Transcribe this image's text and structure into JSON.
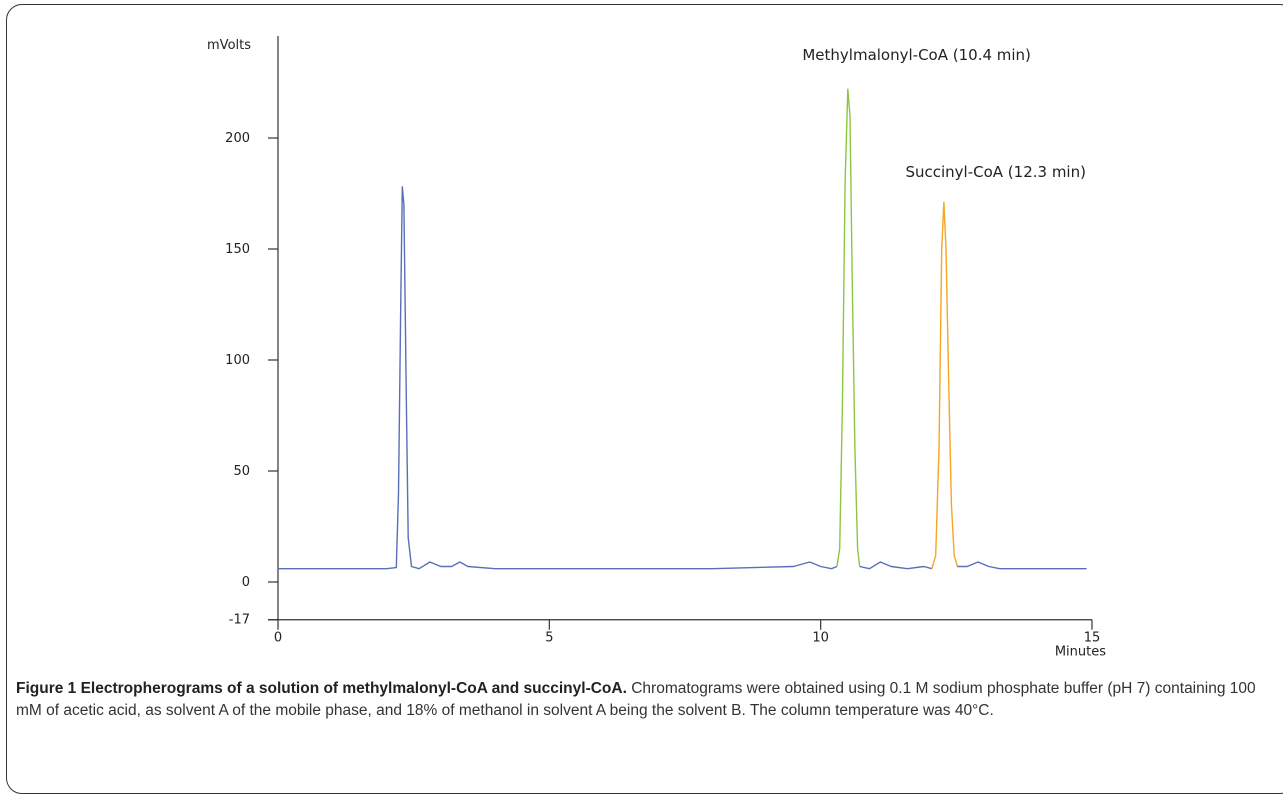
{
  "chart_data": {
    "type": "line",
    "ylabel": "mVolts",
    "xlabel": "Minutes",
    "xlim": [
      0,
      15
    ],
    "ylim": [
      -17,
      250
    ],
    "x_ticks": [
      0,
      5,
      10,
      15
    ],
    "y_ticks": [
      -17,
      0,
      50,
      100,
      150,
      200
    ],
    "baseline_mV": 6,
    "series": [
      {
        "segment": "baseline-and-early-peak",
        "color": "#5a6fb8",
        "points": [
          [
            0,
            6
          ],
          [
            1,
            6
          ],
          [
            2,
            6
          ],
          [
            2.18,
            6.5
          ],
          [
            2.22,
            40
          ],
          [
            2.26,
            120
          ],
          [
            2.29,
            178
          ],
          [
            2.32,
            170
          ],
          [
            2.36,
            90
          ],
          [
            2.4,
            20
          ],
          [
            2.46,
            7
          ],
          [
            2.6,
            6
          ],
          [
            2.8,
            9
          ],
          [
            3.0,
            7
          ],
          [
            3.2,
            7
          ],
          [
            3.35,
            9
          ],
          [
            3.5,
            7
          ],
          [
            4.0,
            6
          ],
          [
            6,
            6
          ],
          [
            8,
            6
          ],
          [
            9.5,
            7
          ],
          [
            9.8,
            9
          ],
          [
            10.0,
            7
          ],
          [
            10.2,
            6
          ],
          [
            10.3,
            7
          ]
        ]
      },
      {
        "segment": "methylmalonyl-coa-peak",
        "color": "#8cc63f",
        "points": [
          [
            10.3,
            7
          ],
          [
            10.35,
            15
          ],
          [
            10.4,
            80
          ],
          [
            10.45,
            180
          ],
          [
            10.5,
            222
          ],
          [
            10.54,
            210
          ],
          [
            10.58,
            140
          ],
          [
            10.63,
            60
          ],
          [
            10.68,
            15
          ],
          [
            10.72,
            7
          ]
        ]
      },
      {
        "segment": "mid-baseline",
        "color": "#5a6fb8",
        "points": [
          [
            10.72,
            7
          ],
          [
            10.9,
            6
          ],
          [
            11.1,
            9
          ],
          [
            11.3,
            7
          ],
          [
            11.6,
            6
          ],
          [
            11.9,
            7
          ],
          [
            12.05,
            6
          ]
        ]
      },
      {
        "segment": "succinyl-coa-peak",
        "color": "#f5a623",
        "points": [
          [
            12.05,
            6
          ],
          [
            12.12,
            12
          ],
          [
            12.18,
            60
          ],
          [
            12.23,
            150
          ],
          [
            12.27,
            171
          ],
          [
            12.31,
            150
          ],
          [
            12.36,
            90
          ],
          [
            12.41,
            35
          ],
          [
            12.46,
            12
          ],
          [
            12.52,
            7
          ]
        ]
      },
      {
        "segment": "tail-baseline",
        "color": "#5a6fb8",
        "points": [
          [
            12.52,
            7
          ],
          [
            12.7,
            7
          ],
          [
            12.9,
            9
          ],
          [
            13.1,
            7
          ],
          [
            13.3,
            6
          ],
          [
            14,
            6
          ],
          [
            14.9,
            6
          ]
        ]
      }
    ],
    "annotations": [
      {
        "text": "Methylmalonyl-CoA (10.4 min)",
        "x": 10.4
      },
      {
        "text": "Succinyl-CoA (12.3 min)",
        "x": 12.3
      }
    ]
  },
  "caption": {
    "title": "Figure 1 Electropherograms of a solution of methylmalonyl-CoA and succinyl-CoA.",
    "body": "Chromatograms were obtained using 0.1 M sodium phosphate buffer (pH 7) containing 100 mM of acetic acid, as solvent A of the mobile phase, and 18% of methanol in solvent A being the solvent B. The column temperature was 40°C."
  }
}
